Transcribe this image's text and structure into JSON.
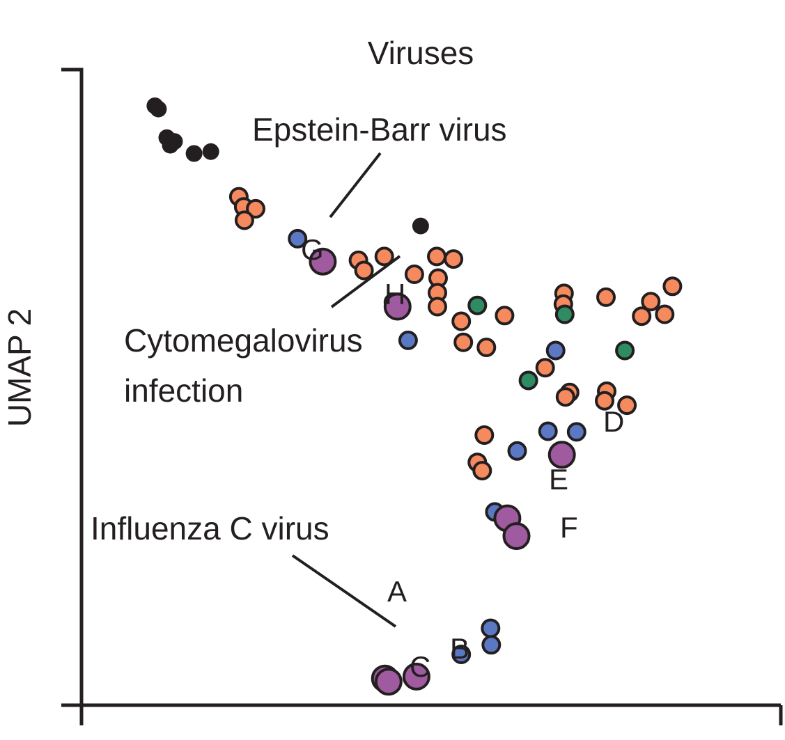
{
  "chart_data": {
    "type": "scatter",
    "title": "Viruses",
    "xlabel": "",
    "ylabel": "UMAP 2",
    "xlim": [
      0,
      100
    ],
    "ylim": [
      0,
      100
    ],
    "grid": false,
    "legend": "none",
    "colors": {
      "black": "#231f20",
      "orange": "#f58a5e",
      "blue": "#5a78c4",
      "green": "#2e8b62",
      "purple": "#a05aa0"
    },
    "series": [
      {
        "color": "black",
        "points": [
          [
            10.5,
            94.3
          ],
          [
            11.0,
            93.8
          ],
          [
            12.7,
            88.1
          ],
          [
            13.3,
            88.7
          ],
          [
            12.2,
            89.3
          ],
          [
            16.1,
            86.8
          ],
          [
            18.5,
            87.1
          ],
          [
            48.5,
            75.4
          ]
        ]
      },
      {
        "color": "orange",
        "points": [
          [
            22.5,
            80.0
          ],
          [
            23.2,
            78.4
          ],
          [
            24.9,
            78.1
          ],
          [
            23.3,
            76.3
          ],
          [
            39.6,
            70.0
          ],
          [
            40.4,
            68.4
          ],
          [
            43.3,
            70.6
          ],
          [
            47.6,
            67.8
          ],
          [
            50.8,
            70.6
          ],
          [
            53.2,
            70.2
          ],
          [
            51.0,
            67.2
          ],
          [
            50.9,
            64.9
          ],
          [
            44.6,
            63.4
          ],
          [
            50.9,
            62.7
          ],
          [
            54.3,
            60.4
          ],
          [
            60.5,
            61.3
          ],
          [
            54.6,
            57.1
          ],
          [
            57.9,
            56.3
          ],
          [
            69.0,
            64.8
          ],
          [
            68.9,
            63.1
          ],
          [
            75.0,
            64.2
          ],
          [
            81.4,
            63.5
          ],
          [
            84.5,
            65.9
          ],
          [
            80.1,
            61.2
          ],
          [
            83.4,
            61.5
          ],
          [
            66.3,
            53.1
          ],
          [
            69.8,
            49.2
          ],
          [
            69.2,
            48.5
          ],
          [
            75.1,
            49.4
          ],
          [
            74.8,
            47.9
          ],
          [
            78.0,
            47.2
          ],
          [
            57.6,
            42.5
          ],
          [
            56.6,
            38.2
          ],
          [
            57.3,
            36.9
          ]
        ]
      },
      {
        "color": "blue",
        "points": [
          [
            30.9,
            73.4
          ],
          [
            46.7,
            57.4
          ],
          [
            67.8,
            55.8
          ],
          [
            62.3,
            40.0
          ],
          [
            66.7,
            43.1
          ],
          [
            70.8,
            43.0
          ],
          [
            59.1,
            30.4
          ],
          [
            58.5,
            12.1
          ],
          [
            58.6,
            9.5
          ],
          [
            54.3,
            8.0
          ],
          [
            47.3,
            4.3
          ]
        ]
      },
      {
        "color": "green",
        "points": [
          [
            56.6,
            62.9
          ],
          [
            69.1,
            61.5
          ],
          [
            77.7,
            55.8
          ],
          [
            63.9,
            51.1
          ]
        ]
      },
      {
        "color": "purple",
        "size": "large",
        "points": [
          [
            34.5,
            69.8
          ],
          [
            45.2,
            62.7
          ],
          [
            68.7,
            39.4
          ],
          [
            60.9,
            29.4
          ],
          [
            62.2,
            26.6
          ],
          [
            43.4,
            4.2
          ],
          [
            47.9,
            4.5
          ],
          [
            43.9,
            3.7
          ]
        ]
      }
    ],
    "point_labels": [
      "A",
      "B",
      "C",
      "D",
      "E",
      "F",
      "G",
      "H"
    ],
    "annotations": {
      "ebv": "Epstein-Barr virus",
      "cmv_line1": "Cytomegalovirus",
      "cmv_line2": "infection",
      "flu": "Influenza C virus"
    }
  }
}
